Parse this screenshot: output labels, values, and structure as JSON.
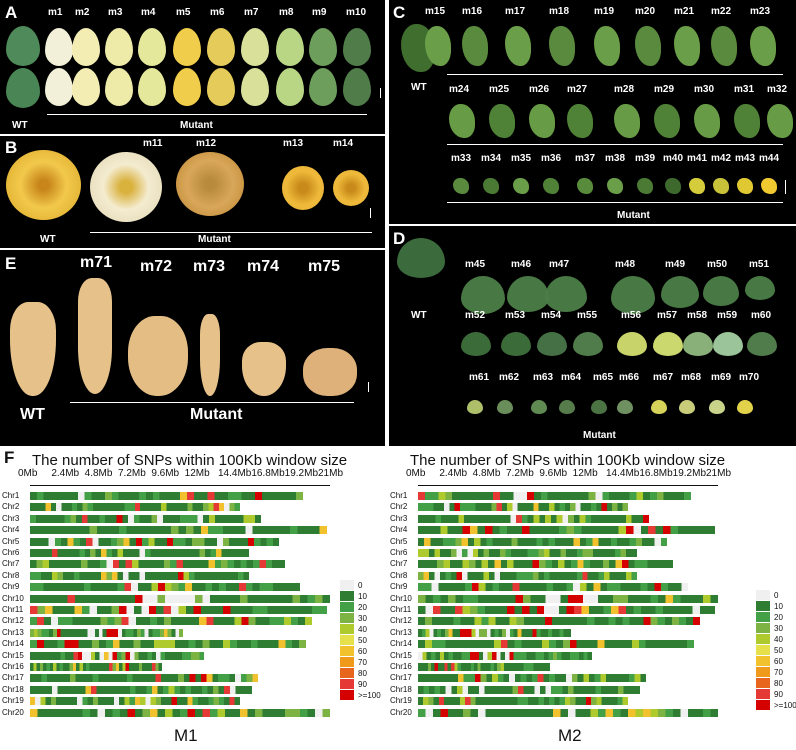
{
  "panels": {
    "a": {
      "letter": "A",
      "wt": "WT",
      "mutant": "Mutant",
      "labels": [
        "m1",
        "m2",
        "m3",
        "m4",
        "m5",
        "m6",
        "m7",
        "m8",
        "m9",
        "m10"
      ]
    },
    "b": {
      "letter": "B",
      "wt": "WT",
      "mutant": "Mutant",
      "labels": [
        "m11",
        "m12",
        "m13",
        "m14"
      ]
    },
    "c": {
      "letter": "C",
      "wt": "WT",
      "mutant": "Mutant",
      "row1": [
        "m15",
        "m16",
        "m17",
        "m18",
        "m19",
        "m20",
        "m21",
        "m22",
        "m23"
      ],
      "row2": [
        "m24",
        "m25",
        "m26",
        "m27",
        "m28",
        "m29",
        "m30",
        "m31",
        "m32"
      ],
      "row3": [
        "m33",
        "m34",
        "m35",
        "m36",
        "m37",
        "m38",
        "m39",
        "m40",
        "m41",
        "m42",
        "m43",
        "m44"
      ]
    },
    "d": {
      "letter": "D",
      "wt": "WT",
      "mutant": "Mutant",
      "row1": [
        "m45",
        "m46",
        "m47",
        "m48",
        "m49",
        "m50",
        "m51"
      ],
      "row2": [
        "m52",
        "m53",
        "m54",
        "m55",
        "m56",
        "m57",
        "m58",
        "m59",
        "m60"
      ],
      "row3": [
        "m61",
        "m62",
        "m63",
        "m64",
        "m65",
        "m66",
        "m67",
        "m68",
        "m69",
        "m70"
      ]
    },
    "e": {
      "letter": "E",
      "wt": "WT",
      "mutant": "Mutant",
      "labels": [
        "m71",
        "m72",
        "m73",
        "m74",
        "m75"
      ]
    }
  },
  "panel_f": {
    "letter": "F",
    "title": "The number of SNPs within 100Kb window size",
    "axis_ticks": [
      "0Mb",
      "2.4Mb",
      "4.8Mb",
      "7.2Mb",
      "9.6Mb",
      "12Mb",
      "14.4Mb",
      "16.8Mb",
      "19.2Mb",
      "21Mb"
    ],
    "chromosomes": [
      "Chr1",
      "Chr2",
      "Chr3",
      "Chr4",
      "Chr5",
      "Chr6",
      "Chr7",
      "Chr8",
      "Chr9",
      "Chr10",
      "Chr11",
      "Chr12",
      "Chr13",
      "Chr14",
      "Chr15",
      "Chr16",
      "Chr17",
      "Chr18",
      "Chr19",
      "Chr20"
    ],
    "legend": [
      "0",
      "10",
      "20",
      "30",
      "40",
      "50",
      "60",
      "70",
      "80",
      "90",
      ">=100"
    ],
    "legend_colors": [
      "#f0f0f0",
      "#2e7d32",
      "#43a047",
      "#7cb342",
      "#aeca2c",
      "#e6e14a",
      "#f2c12e",
      "#ef9a1a",
      "#e8651d",
      "#e53935",
      "#d50000"
    ],
    "captions": [
      "M1",
      "M2"
    ]
  }
}
